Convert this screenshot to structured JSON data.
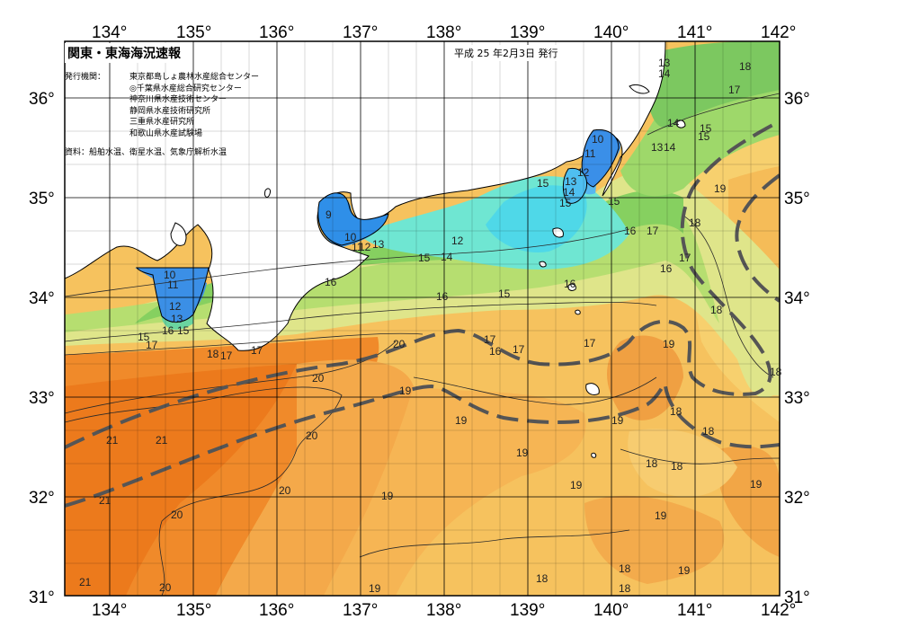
{
  "map": {
    "title": "関東・東海海況速報",
    "issue_date": "平成 25 年2月3日 発行",
    "issuer_label": "発行機関：",
    "issuers": [
      "東京都島しょ農林水産総合センター",
      "◎千葉県水産総合研究センター",
      "神奈川県水産技術センター",
      "静岡県水産技術研究所",
      "三重県水産研究所",
      "和歌山県水産試験場"
    ],
    "source": "資料：船舶水温、衛星水温、気象庁解析水温",
    "lon_labels": [
      "134°",
      "135°",
      "136°",
      "137°",
      "138°",
      "139°",
      "140°",
      "141°",
      "142°"
    ],
    "lat_labels": [
      "36°",
      "35°",
      "34°",
      "33°",
      "32°",
      "31°"
    ],
    "contour_labels": [
      {
        "id": "t13a",
        "text": "13"
      },
      {
        "id": "t14a",
        "text": "14"
      },
      {
        "id": "t18a",
        "text": "18"
      },
      {
        "id": "t17a",
        "text": "17"
      },
      {
        "id": "t14b",
        "text": "14"
      },
      {
        "id": "t15a",
        "text": "15"
      },
      {
        "id": "t15b",
        "text": "15"
      },
      {
        "id": "t13b",
        "text": "13"
      },
      {
        "id": "t14c",
        "text": "14"
      },
      {
        "id": "t10a",
        "text": "10"
      },
      {
        "id": "t11a",
        "text": "11"
      },
      {
        "id": "t12a",
        "text": "12"
      },
      {
        "id": "t13c",
        "text": "13"
      },
      {
        "id": "t14d",
        "text": "14"
      },
      {
        "id": "t15c",
        "text": "15"
      },
      {
        "id": "t15d",
        "text": "15"
      },
      {
        "id": "t15e",
        "text": "15"
      },
      {
        "id": "t19a",
        "text": "19"
      },
      {
        "id": "t18b",
        "text": "18"
      },
      {
        "id": "t16a",
        "text": "16"
      },
      {
        "id": "t17b",
        "text": "17"
      },
      {
        "id": "t17c",
        "text": "17"
      },
      {
        "id": "t16b",
        "text": "16"
      },
      {
        "id": "t9",
        "text": "9"
      },
      {
        "id": "t10b",
        "text": "10"
      },
      {
        "id": "t11b",
        "text": "11"
      },
      {
        "id": "t12b",
        "text": "12"
      },
      {
        "id": "t13d",
        "text": "13"
      },
      {
        "id": "t12c",
        "text": "12"
      },
      {
        "id": "t14e",
        "text": "14"
      },
      {
        "id": "t15f",
        "text": "15"
      },
      {
        "id": "t16c",
        "text": "16"
      },
      {
        "id": "t16d",
        "text": "16"
      },
      {
        "id": "t15g",
        "text": "15"
      },
      {
        "id": "t16e",
        "text": "16"
      },
      {
        "id": "t18c",
        "text": "18"
      },
      {
        "id": "t10c",
        "text": "10"
      },
      {
        "id": "t11c",
        "text": "11"
      },
      {
        "id": "t12d",
        "text": "12"
      },
      {
        "id": "t13e",
        "text": "13"
      },
      {
        "id": "t16f",
        "text": "16"
      },
      {
        "id": "t15h",
        "text": "15"
      },
      {
        "id": "t15i",
        "text": "15"
      },
      {
        "id": "t17d",
        "text": "17"
      },
      {
        "id": "t18d",
        "text": "18"
      },
      {
        "id": "t17e",
        "text": "17"
      },
      {
        "id": "t20a",
        "text": "20"
      },
      {
        "id": "t17f",
        "text": "17"
      },
      {
        "id": "t16g",
        "text": "16"
      },
      {
        "id": "t17g",
        "text": "17"
      },
      {
        "id": "t17h",
        "text": "17"
      },
      {
        "id": "t19b",
        "text": "19"
      },
      {
        "id": "t17i",
        "text": "17"
      },
      {
        "id": "t18e",
        "text": "18"
      },
      {
        "id": "t20b",
        "text": "20"
      },
      {
        "id": "t19c",
        "text": "19"
      },
      {
        "id": "t19d",
        "text": "19"
      },
      {
        "id": "t19e",
        "text": "19"
      },
      {
        "id": "t18f",
        "text": "18"
      },
      {
        "id": "t18g",
        "text": "18"
      },
      {
        "id": "t21a",
        "text": "21"
      },
      {
        "id": "t21b",
        "text": "21"
      },
      {
        "id": "t20c",
        "text": "20"
      },
      {
        "id": "t19f",
        "text": "19"
      },
      {
        "id": "t18h",
        "text": "18"
      },
      {
        "id": "t18i",
        "text": "18"
      },
      {
        "id": "t19g",
        "text": "19"
      },
      {
        "id": "t21c",
        "text": "21"
      },
      {
        "id": "t20d",
        "text": "20"
      },
      {
        "id": "t19h",
        "text": "19"
      },
      {
        "id": "t19i",
        "text": "19"
      },
      {
        "id": "t19j",
        "text": "19"
      },
      {
        "id": "t20e",
        "text": "20"
      },
      {
        "id": "t21d",
        "text": "21"
      },
      {
        "id": "t20f",
        "text": "20"
      },
      {
        "id": "t18j",
        "text": "18"
      },
      {
        "id": "t18k",
        "text": "18"
      },
      {
        "id": "t18l",
        "text": "18"
      },
      {
        "id": "t19k",
        "text": "19"
      },
      {
        "id": "t19l",
        "text": "19"
      }
    ]
  }
}
